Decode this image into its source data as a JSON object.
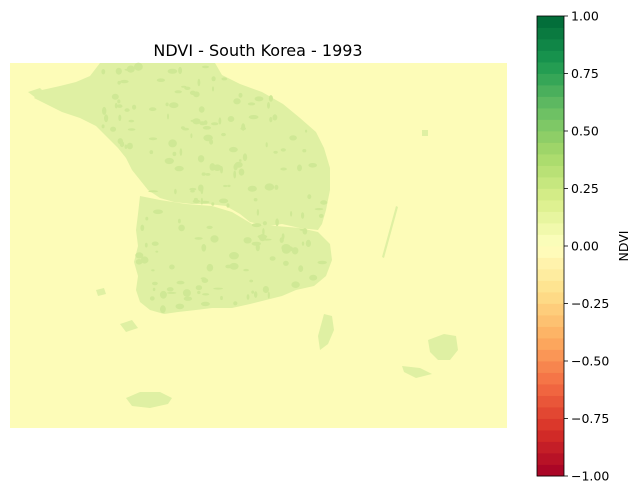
{
  "figure": {
    "title": "NDVI - South Korea - 1993"
  },
  "map": {
    "background_color": "#fdfcb8",
    "land_color": "#dff0a3",
    "dense_land_color": "#cfe895"
  },
  "colorbar": {
    "label": "NDVI",
    "min": -1.0,
    "max": 1.0,
    "colormap": "RdYlGn",
    "levels": 40,
    "ticks": [
      1.0,
      0.75,
      0.5,
      0.25,
      0.0,
      -0.25,
      -0.5,
      -0.75,
      -1.0
    ],
    "tick_labels": [
      "1.00",
      "0.75",
      "0.50",
      "0.25",
      "0.00",
      "−0.25",
      "−0.50",
      "−0.75",
      "−1.00"
    ]
  }
}
